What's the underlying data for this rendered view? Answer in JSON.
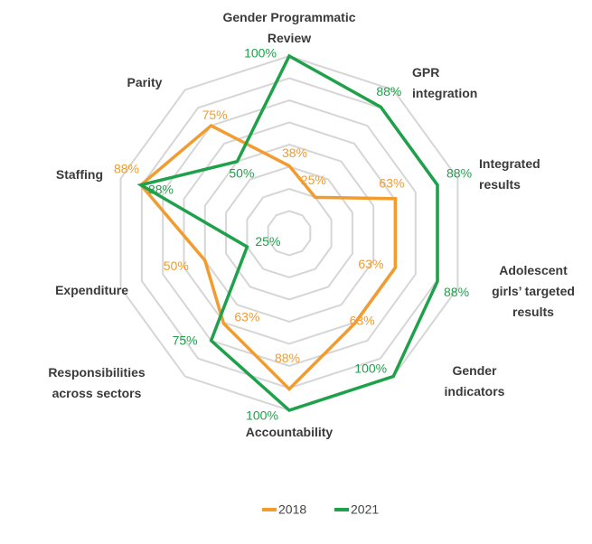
{
  "chart_data": {
    "type": "radar",
    "categories": [
      "Gender Programmatic\nReview",
      "GPR\nintegration",
      "Integrated\nresults",
      "Adolescent\ngirls’ targeted\nresults",
      "Gender\nindicators",
      "Accountability",
      "Responsibilities\nacross sectors",
      "Expenditure",
      "Staffing",
      "Parity"
    ],
    "series": [
      {
        "name": "2018",
        "color": "#f29b2e",
        "values": [
          38,
          25,
          63,
          63,
          63,
          88,
          63,
          50,
          88,
          75
        ],
        "value_labels": [
          "38%",
          "25%",
          "63%",
          "63%",
          "63%",
          "88%",
          "63%",
          "50%",
          "88%",
          "75%"
        ]
      },
      {
        "name": "2021",
        "color": "#1ea14a",
        "values": [
          100,
          88,
          88,
          88,
          100,
          100,
          75,
          25,
          88,
          50
        ],
        "value_labels": [
          "100%",
          "88%",
          "88%",
          "88%",
          "100%",
          "100%",
          "75%",
          "25%",
          "88%",
          "50%"
        ]
      }
    ],
    "rlim": [
      0,
      100
    ],
    "rticks": [
      12.5,
      25,
      37.5,
      50,
      62.5,
      75,
      87.5,
      100
    ],
    "legend": "bottom"
  }
}
